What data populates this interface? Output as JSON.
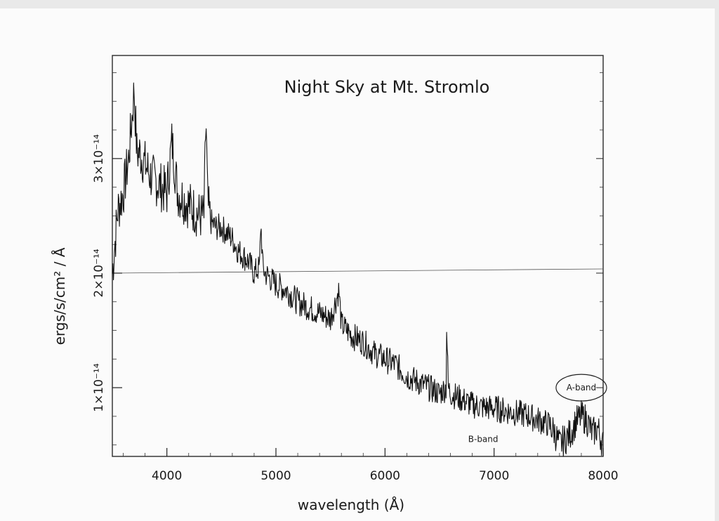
{
  "chart_data": {
    "type": "line",
    "title": "Night Sky at Mt. Stromlo",
    "xlabel": "wavelength  (Å)",
    "ylabel": "ergs/s/cm² / Å",
    "xlim": [
      3500,
      8000
    ],
    "ylim": [
      0.4,
      3.9
    ],
    "y_unit_exponent": "×10⁻¹⁴",
    "x_ticks": [
      4000,
      5000,
      6000,
      7000,
      8000
    ],
    "x_tick_labels": [
      "4000",
      "5000",
      "6000",
      "7000",
      "8000"
    ],
    "y_ticks": [
      1,
      2,
      3
    ],
    "y_tick_labels": [
      "1×10⁻¹⁴",
      "2×10⁻¹⁴",
      "3×10⁻¹⁴"
    ],
    "reference_line_y": 2.0,
    "grid": false,
    "series": [
      {
        "x": [
          3500,
          3550,
          3600,
          3650,
          3700,
          3725,
          3750,
          3800,
          3850,
          3900,
          3950,
          4000,
          4046,
          4100,
          4150,
          4200,
          4250,
          4300,
          4340,
          4358,
          4375,
          4400,
          4450,
          4500,
          4550,
          4600,
          4650,
          4700,
          4750,
          4800,
          4850,
          4861,
          4880,
          4900,
          4950,
          5000,
          5100,
          5200,
          5300,
          5400,
          5500,
          5577,
          5600,
          5700,
          5800,
          5900,
          6000,
          6100,
          6200,
          6300,
          6400,
          6500,
          6560,
          6563,
          6580,
          6600,
          6700,
          6800,
          6900,
          7000,
          7100,
          7200,
          7300,
          7400,
          7500,
          7550,
          7600,
          7650,
          7700,
          7750,
          7800,
          7850,
          7900,
          7950,
          8000
        ],
        "y": [
          2.0,
          2.55,
          2.7,
          3.0,
          3.6,
          3.05,
          3.05,
          2.95,
          2.85,
          2.8,
          2.75,
          2.7,
          3.15,
          2.7,
          2.65,
          2.6,
          2.55,
          2.5,
          2.5,
          3.35,
          2.6,
          2.45,
          2.4,
          2.4,
          2.35,
          2.3,
          2.2,
          2.15,
          2.1,
          2.0,
          2.05,
          2.45,
          2.05,
          2.0,
          1.95,
          1.9,
          1.85,
          1.75,
          1.7,
          1.65,
          1.6,
          1.85,
          1.55,
          1.45,
          1.4,
          1.3,
          1.25,
          1.2,
          1.1,
          1.05,
          1.0,
          0.95,
          1.0,
          1.6,
          1.0,
          0.95,
          0.9,
          0.85,
          0.83,
          0.82,
          0.8,
          0.78,
          0.76,
          0.72,
          0.68,
          0.62,
          0.5,
          0.55,
          0.6,
          0.7,
          0.75,
          0.72,
          0.6,
          0.65,
          0.5
        ]
      }
    ],
    "annotations": [
      {
        "text": "A-band",
        "x": 7800,
        "y": 1.0,
        "circled": true
      },
      {
        "text": "B-band",
        "x": 6900,
        "y": 0.55,
        "circled": false
      }
    ]
  }
}
